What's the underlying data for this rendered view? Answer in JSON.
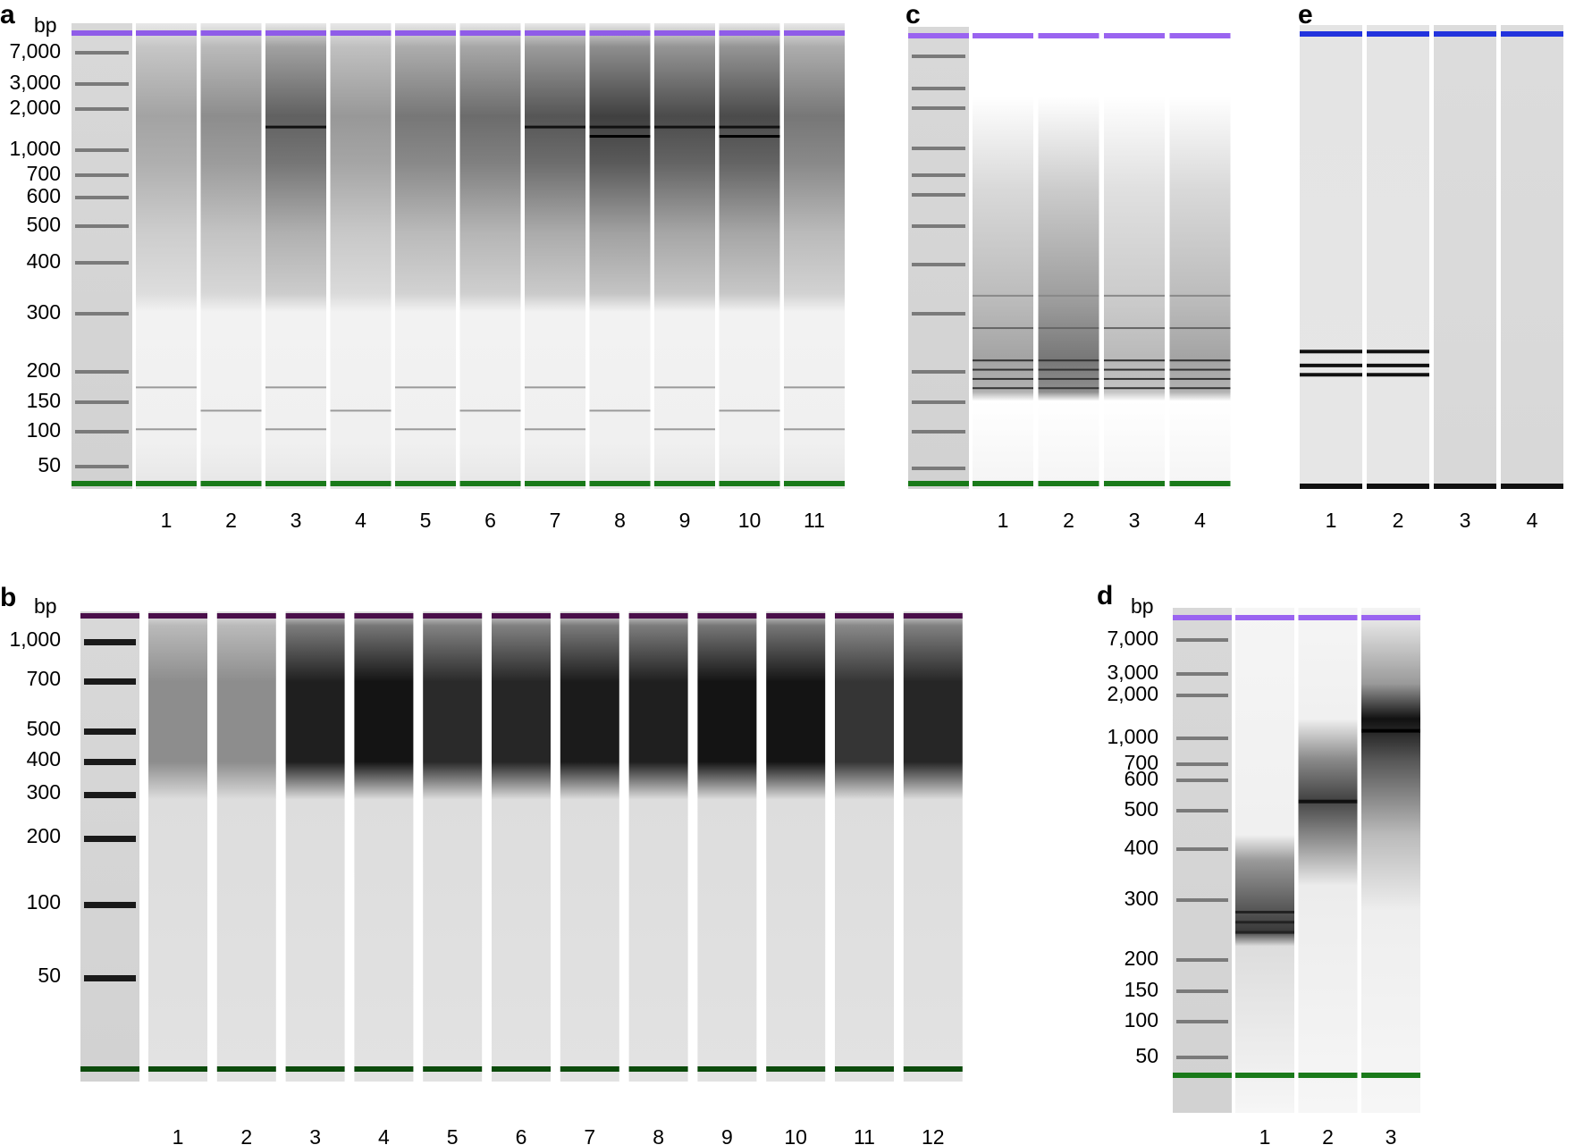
{
  "panels": [
    {
      "id": "a",
      "letter": "a",
      "unit": "bp",
      "ladder_labels": [
        "7,000",
        "3,000",
        "2,000",
        "1,000",
        "700",
        "600",
        "500",
        "400",
        "300",
        "200",
        "150",
        "100",
        "50"
      ],
      "lane_labels": [
        "1",
        "2",
        "3",
        "4",
        "5",
        "6",
        "7",
        "8",
        "9",
        "10",
        "11"
      ],
      "marker_colors": {
        "upper": "#8f5ce8",
        "lower": "#1a7a1a"
      }
    },
    {
      "id": "c",
      "letter": "c",
      "unit": "",
      "ladder_labels": [],
      "lane_labels": [
        "1",
        "2",
        "3",
        "4"
      ],
      "marker_colors": {
        "upper": "#9a64f0",
        "lower": "#1a7a1a"
      }
    },
    {
      "id": "e",
      "letter": "e",
      "unit": "",
      "ladder_labels": [],
      "lane_labels": [
        "1",
        "2",
        "3",
        "4"
      ],
      "marker_colors": {
        "upper": "#2233dd",
        "lower": "#111111"
      }
    },
    {
      "id": "b",
      "letter": "b",
      "unit": "bp",
      "ladder_labels": [
        "1,000",
        "700",
        "500",
        "400",
        "300",
        "200",
        "100",
        "50"
      ],
      "lane_labels": [
        "1",
        "2",
        "3",
        "4",
        "5",
        "6",
        "7",
        "8",
        "9",
        "10",
        "11",
        "12"
      ],
      "marker_colors": {
        "upper": "#4a0f4a",
        "lower": "#0b4a0b"
      }
    },
    {
      "id": "d",
      "letter": "d",
      "unit": "bp",
      "ladder_labels": [
        "7,000",
        "3,000",
        "2,000",
        "1,000",
        "700",
        "600",
        "500",
        "400",
        "300",
        "200",
        "150",
        "100",
        "50"
      ],
      "lane_labels": [
        "1",
        "2",
        "3"
      ],
      "marker_colors": {
        "upper": "#9a64f0",
        "lower": "#1a7a1a"
      }
    }
  ]
}
